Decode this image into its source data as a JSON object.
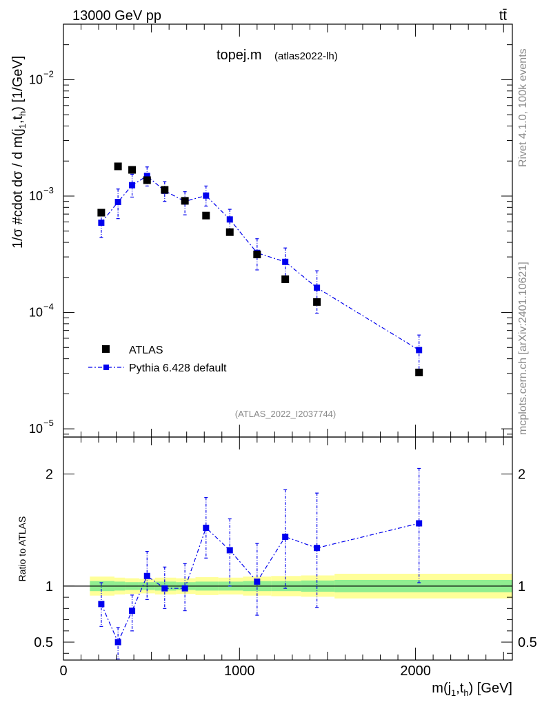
{
  "header": {
    "energy_label": "13000 GeV pp",
    "process_label": "tt̄"
  },
  "side_text": {
    "rivet": "Rivet 4.1.0,  100k events",
    "source": "mcplots.cern.ch [arXiv:2401.10621]"
  },
  "chart_data": [
    {
      "type": "scatter",
      "title": "topej.m",
      "subtitle": "(atlas2022-lh)",
      "watermark": "(ATLAS_2022_I2037744)",
      "ylabel": "1/σ #cdot dσ / d m(j1,th) [1/GeV]",
      "ylabel_parts": {
        "pre": "1/σ #cdot dσ / d m(j",
        "sub1": "1",
        "mid": ",t",
        "sub2": "h",
        "post": ") [1/GeV]"
      },
      "yscale": "log",
      "ylim": [
        8.5e-06,
        0.03
      ],
      "xlim": [
        0,
        2550
      ],
      "ytick_labels": [
        {
          "base": "10",
          "exp": "−2",
          "value": 0.01
        },
        {
          "base": "10",
          "exp": "−3",
          "value": 0.001
        },
        {
          "base": "10",
          "exp": "−4",
          "value": 0.0001
        },
        {
          "base": "10",
          "exp": "−5",
          "value": 1e-05
        }
      ],
      "legend_position": "lower-left",
      "series": [
        {
          "name": "ATLAS",
          "color": "#000000",
          "marker": "square",
          "x": [
            215,
            310,
            390,
            475,
            575,
            690,
            810,
            945,
            1100,
            1260,
            1440,
            2020
          ],
          "y": [
            0.00072,
            0.0018,
            0.00168,
            0.00137,
            0.00113,
            0.00091,
            0.00068,
            0.00049,
            0.000315,
            0.000193,
            0.000123,
            3.05e-05
          ]
        },
        {
          "name": "Pythia 6.428 default",
          "color": "#0000ee",
          "marker": "square",
          "line": "dash-dot",
          "x": [
            215,
            310,
            390,
            475,
            575,
            690,
            810,
            945,
            1100,
            1260,
            1440,
            2020
          ],
          "y": [
            0.00059,
            0.00089,
            0.00124,
            0.00149,
            0.00111,
            0.0009,
            0.00101,
            0.00063,
            0.000325,
            0.000272,
            0.000163,
            4.75e-05
          ],
          "err_lo": [
            0.00044,
            0.00064,
            0.00098,
            0.00122,
            0.0009,
            0.00069,
            0.00082,
            0.00049,
            0.000232,
            0.000192,
            9.85e-05,
            3.2e-05
          ],
          "err_hi": [
            0.00074,
            0.00115,
            0.00154,
            0.00178,
            0.00133,
            0.00109,
            0.00122,
            0.00077,
            0.00043,
            0.000358,
            0.000228,
            6.4e-05
          ]
        }
      ]
    },
    {
      "type": "scatter",
      "ylabel": "Ratio to ATLAS",
      "xlabel": "m(j1,th) [GeV]",
      "xlabel_parts": {
        "pre": "m(j",
        "sub1": "1",
        "mid": ",t",
        "sub2": "h",
        "post": ") [GeV]"
      },
      "xlim": [
        0,
        2550
      ],
      "ylim": [
        0.34,
        2.33
      ],
      "yticks_labeled": [
        "2",
        "1",
        "0.5"
      ],
      "ytick_values": [
        2,
        1,
        0.5
      ],
      "xtick_labels": [
        "0",
        "1000",
        "2000"
      ],
      "xtick_values": [
        0,
        1000,
        2000
      ],
      "reference_line": 1,
      "bands": {
        "edges": [
          150,
          290,
          350,
          430,
          520,
          640,
          750,
          880,
          1020,
          1180,
          1350,
          1540,
          2550
        ],
        "yellow_lo": [
          0.915,
          0.925,
          0.93,
          0.935,
          0.925,
          0.93,
          0.92,
          0.925,
          0.915,
          0.91,
          0.905,
          0.89
        ],
        "yellow_hi": [
          1.085,
          1.075,
          1.07,
          1.065,
          1.075,
          1.07,
          1.08,
          1.075,
          1.085,
          1.09,
          1.095,
          1.11
        ],
        "green_lo": [
          0.955,
          0.96,
          0.965,
          0.965,
          0.96,
          0.965,
          0.96,
          0.96,
          0.955,
          0.955,
          0.95,
          0.945
        ],
        "green_hi": [
          1.045,
          1.04,
          1.035,
          1.035,
          1.04,
          1.035,
          1.04,
          1.04,
          1.045,
          1.045,
          1.05,
          1.055
        ],
        "yellow_color": "#ffff99",
        "green_color": "#90ee90"
      },
      "series": [
        {
          "name": "Pythia 6.428 default",
          "color": "#0000ee",
          "x": [
            215,
            310,
            390,
            475,
            575,
            690,
            810,
            945,
            1100,
            1260,
            1440,
            2020
          ],
          "y": [
            0.84,
            0.5,
            0.78,
            1.09,
            0.98,
            0.98,
            1.52,
            1.32,
            1.04,
            1.44,
            1.34,
            1.56
          ],
          "err_lo": [
            0.64,
            0.35,
            0.6,
            0.88,
            0.8,
            0.78,
            1.25,
            1.0,
            0.74,
            0.98,
            0.81,
            1.03
          ],
          "err_hi": [
            1.03,
            0.63,
            0.92,
            1.31,
            1.17,
            1.2,
            1.79,
            1.6,
            1.38,
            1.86,
            1.83,
            2.05
          ]
        }
      ]
    }
  ]
}
